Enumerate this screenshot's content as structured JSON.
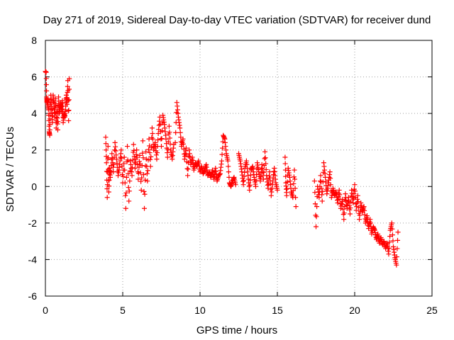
{
  "chart_data": {
    "type": "scatter",
    "title": "Day 271 of 2019, Sidereal Day-to-day VTEC variation (SDTVAR) for receiver dund",
    "xlabel": "GPS time / hours",
    "ylabel": "SDTVAR / TECUs",
    "xlim": [
      0,
      25
    ],
    "ylim": [
      -6,
      8
    ],
    "xticks": [
      "0",
      "5",
      "10",
      "15",
      "20",
      "25"
    ],
    "yticks": [
      "-6",
      "-4",
      "-2",
      "0",
      "2",
      "4",
      "6",
      "8"
    ],
    "grid": true,
    "marker": "plus",
    "color": "#ff0000",
    "series": [
      {
        "name": "SDTVAR",
        "segments": [
          {
            "x": [
              0.0,
              0.05,
              0.08,
              0.1,
              0.12,
              0.15,
              0.2,
              0.25,
              0.28,
              0.3,
              0.35,
              0.4,
              0.45,
              0.5,
              0.55,
              0.6,
              0.65,
              0.7,
              0.75,
              0.8,
              0.85,
              0.9,
              0.95,
              1.0,
              1.05,
              1.1,
              1.15,
              1.2,
              1.25,
              1.3,
              1.35,
              1.4,
              1.45,
              1.5,
              1.55
            ],
            "y": [
              6.3,
              6.25,
              4.9,
              4.6,
              4.8,
              4.5,
              4.2,
              3.0,
              2.8,
              4.0,
              5.0,
              4.2,
              3.5,
              5.0,
              4.6,
              3.8,
              4.8,
              3.2,
              4.4,
              3.1,
              4.9,
              4.0,
              4.3,
              4.6,
              4.1,
              4.7,
              3.5,
              4.0,
              3.8,
              4.2,
              5.0,
              4.5,
              5.8,
              3.6,
              5.9
            ]
          },
          {
            "x": [
              3.9,
              3.95,
              4.0,
              4.05,
              4.1,
              4.15,
              4.2,
              4.3,
              4.4,
              4.5,
              4.6,
              4.7,
              4.8,
              4.9,
              5.0,
              5.1,
              5.2,
              5.3,
              5.4,
              5.5,
              5.6,
              5.7,
              5.8,
              5.9,
              6.0,
              6.1,
              6.2,
              6.3,
              6.4,
              6.5,
              6.6,
              6.7,
              6.8,
              6.9,
              7.0,
              7.1,
              7.2,
              7.3,
              7.4,
              7.5,
              7.6,
              7.7,
              7.8,
              7.9,
              8.0,
              8.1,
              8.2,
              8.3
            ],
            "y": [
              2.7,
              1.3,
              -0.6,
              2.2,
              -0.3,
              1.0,
              0.5,
              1.8,
              0.8,
              2.4,
              1.5,
              0.6,
              1.2,
              2.0,
              0.2,
              1.6,
              -1.2,
              2.2,
              -0.8,
              1.4,
              0.6,
              2.3,
              1.0,
              2.0,
              0.4,
              1.7,
              -0.2,
              2.5,
              -1.2,
              1.9,
              0.3,
              2.6,
              1.1,
              3.2,
              2.0,
              2.4,
              1.5,
              2.9,
              3.8,
              2.2,
              3.9,
              3.4,
              2.6,
              1.6,
              3.3,
              2.0,
              1.5,
              2.3
            ]
          },
          {
            "x": [
              8.4,
              8.5,
              8.6,
              8.7,
              8.8,
              8.9,
              9.0,
              9.1,
              9.2,
              9.3,
              9.4,
              9.5,
              9.6,
              9.7,
              9.8,
              9.9,
              10.0,
              10.1,
              10.2,
              10.3,
              10.4,
              10.5,
              10.6,
              10.7,
              10.8,
              10.9,
              11.0,
              11.1,
              11.2,
              11.3,
              11.4,
              11.5,
              11.6,
              11.7,
              11.8,
              11.9,
              12.0,
              12.1,
              12.2,
              12.3
            ],
            "y": [
              2.4,
              4.6,
              3.8,
              3.2,
              2.2,
              2.6,
              1.5,
              2.1,
              0.6,
              2.0,
              1.2,
              1.6,
              0.9,
              1.3,
              1.1,
              1.4,
              0.8,
              1.1,
              0.7,
              0.9,
              1.2,
              0.6,
              0.8,
              0.5,
              0.9,
              0.4,
              1.0,
              0.3,
              0.6,
              0.7,
              1.4,
              2.8,
              2.6,
              1.8,
              1.4,
              0.2,
              0.0,
              0.3,
              0.5,
              0.1
            ]
          },
          {
            "x": [
              12.5,
              12.6,
              12.7,
              12.8,
              12.9,
              13.0,
              13.1,
              13.2,
              13.3,
              13.4,
              13.5,
              13.6,
              13.7,
              13.8,
              13.9,
              14.0,
              14.1,
              14.2,
              14.3,
              14.4,
              14.5,
              14.6,
              14.7,
              14.8,
              14.9,
              15.0
            ],
            "y": [
              1.8,
              1.4,
              0.8,
              0.1,
              1.0,
              1.4,
              0.6,
              -0.2,
              0.9,
              1.1,
              0.5,
              0.0,
              1.3,
              0.8,
              0.3,
              1.2,
              0.4,
              1.9,
              0.6,
              -0.1,
              0.8,
              -0.5,
              0.3,
              1.0,
              0.2,
              -0.2
            ]
          },
          {
            "x": [
              15.5,
              15.55,
              15.6,
              15.7,
              15.8,
              15.9,
              16.0,
              16.1,
              16.2
            ],
            "y": [
              1.6,
              0.2,
              -0.5,
              1.0,
              0.5,
              -0.3,
              -0.6,
              0.9,
              -1.1
            ]
          },
          {
            "x": [
              17.4,
              17.5,
              17.6,
              17.7,
              17.8,
              17.9,
              18.0,
              18.1,
              18.2,
              18.3,
              18.4,
              18.5,
              18.6,
              18.7,
              18.8,
              18.9,
              19.0,
              19.1,
              19.2,
              19.3,
              19.4,
              19.5,
              19.6,
              19.7,
              19.8,
              19.9,
              20.0,
              20.1,
              20.2,
              20.3,
              20.4,
              20.5,
              20.6,
              20.7,
              20.8,
              20.9,
              21.0,
              21.1,
              21.2,
              21.3,
              21.4,
              21.5,
              21.6,
              21.7,
              21.8,
              21.9,
              22.0,
              22.1,
              22.2,
              22.3,
              22.4,
              22.5,
              22.6,
              22.7,
              22.8
            ],
            "y": [
              0.3,
              -2.2,
              0.0,
              -0.6,
              0.6,
              -0.8,
              1.3,
              0.5,
              -0.4,
              0.2,
              0.8,
              -0.6,
              -0.1,
              -0.5,
              -0.3,
              -0.9,
              -0.2,
              -1.2,
              -0.7,
              -1.8,
              -0.4,
              -1.2,
              -0.6,
              -1.5,
              -0.2,
              -0.9,
              0.1,
              -1.3,
              -0.5,
              -1.8,
              -0.9,
              -1.4,
              -1.1,
              -2.0,
              -1.6,
              -2.3,
              -1.8,
              -2.6,
              -2.2,
              -2.4,
              -2.9,
              -2.6,
              -3.1,
              -2.8,
              -3.2,
              -3.0,
              -3.4,
              -3.1,
              -3.7,
              -2.4,
              -2.0,
              -3.3,
              -3.9,
              -4.3,
              -2.5
            ]
          }
        ]
      }
    ]
  }
}
